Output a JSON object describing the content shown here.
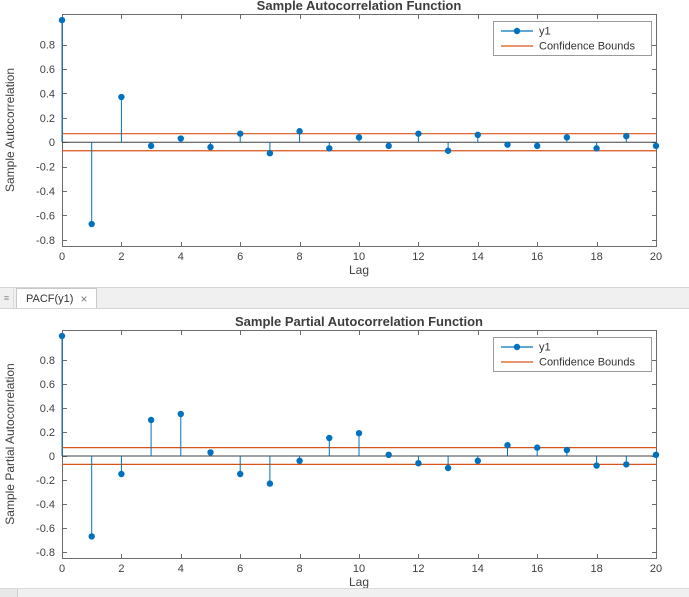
{
  "tab_bar": {
    "menu_icon": "≡",
    "tab_label": "PACF(y1)",
    "close_label": "×"
  },
  "colors": {
    "series": "#0072BD",
    "confidence": "#D95319",
    "axis_line": "#6b6b6b",
    "baseline": "#404040",
    "tick_label": "#404040",
    "title": "#3d3d3d",
    "legend_border": "#9a9a9a"
  },
  "chart_data": [
    {
      "type": "scatter",
      "style": "stem",
      "title": "Sample Autocorrelation Function",
      "xlabel": "Lag",
      "ylabel": "Sample Autocorrelation",
      "xlim": [
        0,
        20
      ],
      "ylim": [
        -0.85,
        1.05
      ],
      "xticks": [
        0,
        2,
        4,
        6,
        8,
        10,
        12,
        14,
        16,
        18,
        20
      ],
      "yticks": [
        -0.8,
        -0.6,
        -0.4,
        -0.2,
        0,
        0.2,
        0.4,
        0.6,
        0.8
      ],
      "grid": false,
      "legend": {
        "position": "top-right",
        "entries": [
          {
            "label": "y1",
            "marker": "circle"
          },
          {
            "label": "Confidence Bounds",
            "marker": "line"
          }
        ]
      },
      "confidence_bounds": {
        "upper": 0.07,
        "lower": -0.07
      },
      "x": [
        0,
        1,
        2,
        3,
        4,
        5,
        6,
        7,
        8,
        9,
        10,
        11,
        12,
        13,
        14,
        15,
        16,
        17,
        18,
        19,
        20
      ],
      "y": [
        1.0,
        -0.67,
        0.37,
        -0.03,
        0.03,
        -0.04,
        0.07,
        -0.09,
        0.09,
        -0.05,
        0.04,
        -0.03,
        0.07,
        -0.07,
        0.06,
        -0.02,
        -0.03,
        0.04,
        -0.05,
        0.05,
        -0.03
      ]
    },
    {
      "type": "scatter",
      "style": "stem",
      "title": "Sample Partial Autocorrelation Function",
      "xlabel": "Lag",
      "ylabel": "Sample Partial Autocorrelation",
      "xlim": [
        0,
        20
      ],
      "ylim": [
        -0.85,
        1.05
      ],
      "xticks": [
        0,
        2,
        4,
        6,
        8,
        10,
        12,
        14,
        16,
        18,
        20
      ],
      "yticks": [
        -0.8,
        -0.6,
        -0.4,
        -0.2,
        0,
        0.2,
        0.4,
        0.6,
        0.8
      ],
      "grid": false,
      "legend": {
        "position": "top-right",
        "entries": [
          {
            "label": "y1",
            "marker": "circle"
          },
          {
            "label": "Confidence Bounds",
            "marker": "line"
          }
        ]
      },
      "confidence_bounds": {
        "upper": 0.07,
        "lower": -0.07
      },
      "x": [
        0,
        1,
        2,
        3,
        4,
        5,
        6,
        7,
        8,
        9,
        10,
        11,
        12,
        13,
        14,
        15,
        16,
        17,
        18,
        19,
        20
      ],
      "y": [
        1.0,
        -0.67,
        -0.15,
        0.3,
        0.35,
        0.03,
        -0.15,
        -0.23,
        -0.04,
        0.15,
        0.19,
        0.01,
        -0.06,
        -0.1,
        -0.04,
        0.09,
        0.07,
        0.05,
        -0.08,
        -0.07,
        0.01
      ]
    }
  ]
}
